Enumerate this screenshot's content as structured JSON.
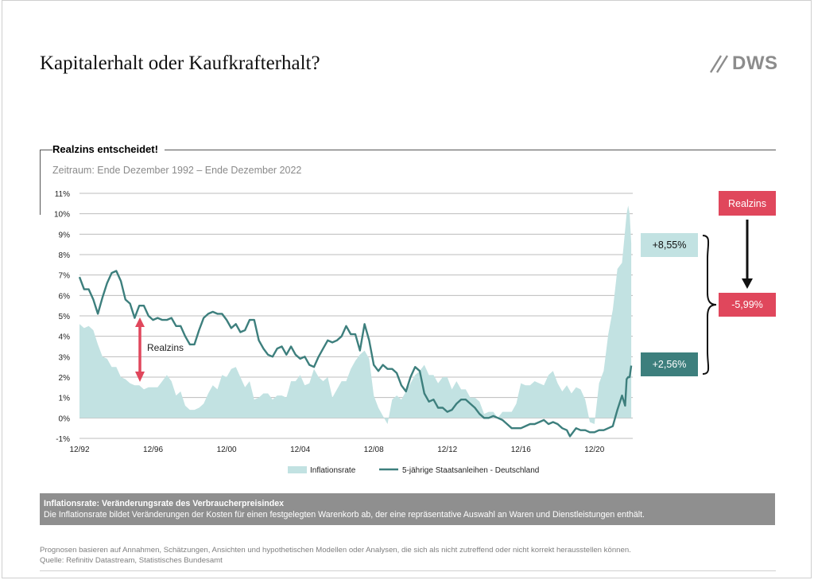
{
  "page": {
    "title": "Kapitalerhalt oder Kaufkrafterhalt?",
    "logo_text": "DWS",
    "section_title": "Realzins entscheidet!",
    "period": "Zeitraum: Ende Dezember 1992 – Ende Dezember 2022",
    "note_title": "Inflationsrate: Veränderungsrate des Verbraucherpreisindex",
    "note_body": "Die Inflationsrate bildet Veränderungen der Kosten für einen festgelegten Warenkorb ab, der eine repräsentative Auswahl an Waren und Dienstleistungen enthält.",
    "footer_line1": "Prognosen basieren auf Annahmen, Schätzungen, Ansichten und hypothetischen Modellen oder Analysen, die sich als nicht zutreffend oder nicht korrekt herausstellen können.",
    "footer_line2": "Quelle: Refinitiv Datastream, Statistisches Bundesamt"
  },
  "colors": {
    "inflation_fill": "#c2e2e2",
    "bond_line": "#3d7f7d",
    "realzins": "#e0475c",
    "logo": "#8c8c8c",
    "note_bg": "#8f8f8f"
  },
  "annotations": {
    "realzins_arrow_label": "Realzins",
    "realzins_box": "Realzins",
    "inflation_value": "+8,55%",
    "realzins_value": "-5,99%",
    "bond_value": "+2,56%"
  },
  "chart_data": {
    "type": "area",
    "title": "Realzins entscheidet!",
    "subtitle": "Zeitraum: Ende Dezember 1992 – Ende Dezember 2022",
    "xlabel": "",
    "ylabel": "",
    "ylim": [
      -1,
      11
    ],
    "y_ticks": [
      "11%",
      "10%",
      "9%",
      "8%",
      "7%",
      "6%",
      "5%",
      "4%",
      "3%",
      "2%",
      "1%",
      "0%",
      "-1%"
    ],
    "x_ticks": [
      "12/92",
      "12/96",
      "12/00",
      "12/04",
      "12/08",
      "12/12",
      "12/16",
      "12/20"
    ],
    "xlim": [
      "1992-12",
      "2023-01"
    ],
    "grid": "horizontal",
    "legend_position": "bottom",
    "series": [
      {
        "name": "Inflationsrate",
        "type": "area",
        "points": [
          [
            "1992-12",
            4.6
          ],
          [
            "1993-03",
            4.4
          ],
          [
            "1993-06",
            4.5
          ],
          [
            "1993-09",
            4.3
          ],
          [
            "1993-12",
            3.6
          ],
          [
            "1994-03",
            3.0
          ],
          [
            "1994-06",
            2.9
          ],
          [
            "1994-09",
            2.5
          ],
          [
            "1994-12",
            2.5
          ],
          [
            "1995-03",
            2.0
          ],
          [
            "1995-06",
            1.9
          ],
          [
            "1995-09",
            1.7
          ],
          [
            "1995-12",
            1.6
          ],
          [
            "1996-03",
            1.6
          ],
          [
            "1996-06",
            1.4
          ],
          [
            "1996-09",
            1.5
          ],
          [
            "1996-12",
            1.5
          ],
          [
            "1997-03",
            1.5
          ],
          [
            "1997-06",
            1.8
          ],
          [
            "1997-09",
            2.1
          ],
          [
            "1997-12",
            1.8
          ],
          [
            "1998-03",
            1.1
          ],
          [
            "1998-06",
            1.3
          ],
          [
            "1998-09",
            0.6
          ],
          [
            "1998-12",
            0.4
          ],
          [
            "1999-03",
            0.4
          ],
          [
            "1999-06",
            0.5
          ],
          [
            "1999-09",
            0.7
          ],
          [
            "1999-12",
            1.2
          ],
          [
            "2000-03",
            1.6
          ],
          [
            "2000-06",
            1.4
          ],
          [
            "2000-09",
            2.1
          ],
          [
            "2000-12",
            2.0
          ],
          [
            "2001-03",
            2.4
          ],
          [
            "2001-06",
            2.5
          ],
          [
            "2001-09",
            2.0
          ],
          [
            "2001-12",
            1.5
          ],
          [
            "2002-03",
            1.8
          ],
          [
            "2002-06",
            0.9
          ],
          [
            "2002-09",
            1.0
          ],
          [
            "2002-12",
            1.2
          ],
          [
            "2003-03",
            1.2
          ],
          [
            "2003-06",
            0.9
          ],
          [
            "2003-09",
            1.1
          ],
          [
            "2003-12",
            1.1
          ],
          [
            "2004-03",
            1.0
          ],
          [
            "2004-06",
            1.8
          ],
          [
            "2004-09",
            1.8
          ],
          [
            "2004-12",
            2.1
          ],
          [
            "2005-03",
            1.6
          ],
          [
            "2005-06",
            1.7
          ],
          [
            "2005-09",
            2.4
          ],
          [
            "2005-12",
            2.0
          ],
          [
            "2006-03",
            1.8
          ],
          [
            "2006-06",
            2.0
          ],
          [
            "2006-09",
            1.0
          ],
          [
            "2006-12",
            1.4
          ],
          [
            "2007-03",
            1.8
          ],
          [
            "2007-06",
            1.8
          ],
          [
            "2007-09",
            2.4
          ],
          [
            "2007-12",
            2.8
          ],
          [
            "2008-03",
            3.1
          ],
          [
            "2008-06",
            3.3
          ],
          [
            "2008-09",
            2.9
          ],
          [
            "2008-12",
            1.1
          ],
          [
            "2009-03",
            0.5
          ],
          [
            "2009-06",
            0.1
          ],
          [
            "2009-09",
            -0.3
          ],
          [
            "2009-12",
            0.9
          ],
          [
            "2010-03",
            1.1
          ],
          [
            "2010-06",
            0.9
          ],
          [
            "2010-09",
            1.3
          ],
          [
            "2010-12",
            1.7
          ],
          [
            "2011-03",
            2.1
          ],
          [
            "2011-06",
            2.3
          ],
          [
            "2011-09",
            2.6
          ],
          [
            "2011-12",
            2.1
          ],
          [
            "2012-03",
            2.1
          ],
          [
            "2012-06",
            1.7
          ],
          [
            "2012-09",
            2.0
          ],
          [
            "2012-12",
            2.0
          ],
          [
            "2013-03",
            1.4
          ],
          [
            "2013-06",
            1.8
          ],
          [
            "2013-09",
            1.4
          ],
          [
            "2013-12",
            1.4
          ],
          [
            "2014-03",
            1.0
          ],
          [
            "2014-06",
            1.0
          ],
          [
            "2014-09",
            0.8
          ],
          [
            "2014-12",
            0.2
          ],
          [
            "2015-03",
            0.3
          ],
          [
            "2015-06",
            0.3
          ],
          [
            "2015-09",
            0.0
          ],
          [
            "2015-12",
            0.3
          ],
          [
            "2016-03",
            0.3
          ],
          [
            "2016-06",
            0.3
          ],
          [
            "2016-09",
            0.7
          ],
          [
            "2016-12",
            1.7
          ],
          [
            "2017-03",
            1.6
          ],
          [
            "2017-06",
            1.6
          ],
          [
            "2017-09",
            1.8
          ],
          [
            "2017-12",
            1.7
          ],
          [
            "2018-03",
            1.6
          ],
          [
            "2018-06",
            2.1
          ],
          [
            "2018-09",
            2.3
          ],
          [
            "2018-12",
            1.7
          ],
          [
            "2019-03",
            1.3
          ],
          [
            "2019-06",
            1.6
          ],
          [
            "2019-09",
            1.2
          ],
          [
            "2019-12",
            1.5
          ],
          [
            "2020-03",
            1.4
          ],
          [
            "2020-06",
            0.9
          ],
          [
            "2020-09",
            -0.2
          ],
          [
            "2020-12",
            -0.3
          ],
          [
            "2021-03",
            1.7
          ],
          [
            "2021-06",
            2.3
          ],
          [
            "2021-09",
            4.1
          ],
          [
            "2021-12",
            5.3
          ],
          [
            "2022-03",
            7.3
          ],
          [
            "2022-06",
            7.6
          ],
          [
            "2022-09",
            10.0
          ],
          [
            "2022-10",
            10.4
          ],
          [
            "2022-11",
            10.0
          ],
          [
            "2022-12",
            8.55
          ]
        ]
      },
      {
        "name": "5-jährige Staatsanleihen - Deutschland",
        "type": "line",
        "points": [
          [
            "1992-12",
            6.9
          ],
          [
            "1993-03",
            6.3
          ],
          [
            "1993-06",
            6.3
          ],
          [
            "1993-09",
            5.8
          ],
          [
            "1993-12",
            5.1
          ],
          [
            "1994-03",
            5.9
          ],
          [
            "1994-06",
            6.6
          ],
          [
            "1994-09",
            7.1
          ],
          [
            "1994-12",
            7.2
          ],
          [
            "1995-03",
            6.7
          ],
          [
            "1995-06",
            5.8
          ],
          [
            "1995-09",
            5.6
          ],
          [
            "1995-12",
            4.9
          ],
          [
            "1996-03",
            5.5
          ],
          [
            "1996-06",
            5.5
          ],
          [
            "1996-09",
            5.0
          ],
          [
            "1996-12",
            4.8
          ],
          [
            "1997-03",
            4.9
          ],
          [
            "1997-06",
            4.8
          ],
          [
            "1997-09",
            4.8
          ],
          [
            "1997-12",
            4.9
          ],
          [
            "1998-03",
            4.5
          ],
          [
            "1998-06",
            4.5
          ],
          [
            "1998-09",
            4.0
          ],
          [
            "1998-12",
            3.6
          ],
          [
            "1999-03",
            3.6
          ],
          [
            "1999-06",
            4.3
          ],
          [
            "1999-09",
            4.9
          ],
          [
            "1999-12",
            5.1
          ],
          [
            "2000-03",
            5.2
          ],
          [
            "2000-06",
            5.1
          ],
          [
            "2000-09",
            5.1
          ],
          [
            "2000-12",
            4.8
          ],
          [
            "2001-03",
            4.4
          ],
          [
            "2001-06",
            4.6
          ],
          [
            "2001-09",
            4.2
          ],
          [
            "2001-12",
            4.3
          ],
          [
            "2002-03",
            4.8
          ],
          [
            "2002-06",
            4.8
          ],
          [
            "2002-09",
            3.8
          ],
          [
            "2002-12",
            3.4
          ],
          [
            "2003-03",
            3.1
          ],
          [
            "2003-06",
            3.0
          ],
          [
            "2003-09",
            3.4
          ],
          [
            "2003-12",
            3.5
          ],
          [
            "2004-03",
            3.1
          ],
          [
            "2004-06",
            3.5
          ],
          [
            "2004-09",
            3.1
          ],
          [
            "2004-12",
            2.9
          ],
          [
            "2005-03",
            3.0
          ],
          [
            "2005-06",
            2.6
          ],
          [
            "2005-09",
            2.5
          ],
          [
            "2005-12",
            3.0
          ],
          [
            "2006-03",
            3.4
          ],
          [
            "2006-06",
            3.8
          ],
          [
            "2006-09",
            3.7
          ],
          [
            "2006-12",
            3.8
          ],
          [
            "2007-03",
            4.0
          ],
          [
            "2007-06",
            4.5
          ],
          [
            "2007-09",
            4.1
          ],
          [
            "2007-12",
            4.1
          ],
          [
            "2008-03",
            3.3
          ],
          [
            "2008-06",
            4.6
          ],
          [
            "2008-09",
            3.8
          ],
          [
            "2008-12",
            2.6
          ],
          [
            "2009-03",
            2.3
          ],
          [
            "2009-06",
            2.6
          ],
          [
            "2009-09",
            2.4
          ],
          [
            "2009-12",
            2.4
          ],
          [
            "2010-03",
            2.2
          ],
          [
            "2010-06",
            1.6
          ],
          [
            "2010-09",
            1.3
          ],
          [
            "2010-12",
            2.0
          ],
          [
            "2011-03",
            2.5
          ],
          [
            "2011-06",
            2.3
          ],
          [
            "2011-09",
            1.2
          ],
          [
            "2011-12",
            0.8
          ],
          [
            "2012-03",
            0.9
          ],
          [
            "2012-06",
            0.5
          ],
          [
            "2012-09",
            0.5
          ],
          [
            "2012-12",
            0.3
          ],
          [
            "2013-03",
            0.4
          ],
          [
            "2013-06",
            0.7
          ],
          [
            "2013-09",
            0.9
          ],
          [
            "2013-12",
            0.9
          ],
          [
            "2014-03",
            0.7
          ],
          [
            "2014-06",
            0.5
          ],
          [
            "2014-09",
            0.2
          ],
          [
            "2014-12",
            0.0
          ],
          [
            "2015-03",
            0.0
          ],
          [
            "2015-06",
            0.1
          ],
          [
            "2015-09",
            0.0
          ],
          [
            "2015-12",
            -0.1
          ],
          [
            "2016-03",
            -0.3
          ],
          [
            "2016-06",
            -0.5
          ],
          [
            "2016-09",
            -0.5
          ],
          [
            "2016-12",
            -0.5
          ],
          [
            "2017-03",
            -0.4
          ],
          [
            "2017-06",
            -0.3
          ],
          [
            "2017-09",
            -0.3
          ],
          [
            "2017-12",
            -0.2
          ],
          [
            "2018-03",
            -0.1
          ],
          [
            "2018-06",
            -0.3
          ],
          [
            "2018-09",
            -0.2
          ],
          [
            "2018-12",
            -0.3
          ],
          [
            "2019-03",
            -0.5
          ],
          [
            "2019-06",
            -0.6
          ],
          [
            "2019-08",
            -0.9
          ],
          [
            "2019-12",
            -0.5
          ],
          [
            "2020-03",
            -0.6
          ],
          [
            "2020-06",
            -0.6
          ],
          [
            "2020-09",
            -0.7
          ],
          [
            "2020-12",
            -0.7
          ],
          [
            "2021-03",
            -0.6
          ],
          [
            "2021-06",
            -0.6
          ],
          [
            "2021-09",
            -0.5
          ],
          [
            "2021-12",
            -0.4
          ],
          [
            "2022-03",
            0.4
          ],
          [
            "2022-06",
            1.1
          ],
          [
            "2022-08",
            0.6
          ],
          [
            "2022-09",
            1.9
          ],
          [
            "2022-10",
            2.0
          ],
          [
            "2022-11",
            2.0
          ],
          [
            "2022-12",
            2.56
          ]
        ]
      }
    ]
  }
}
